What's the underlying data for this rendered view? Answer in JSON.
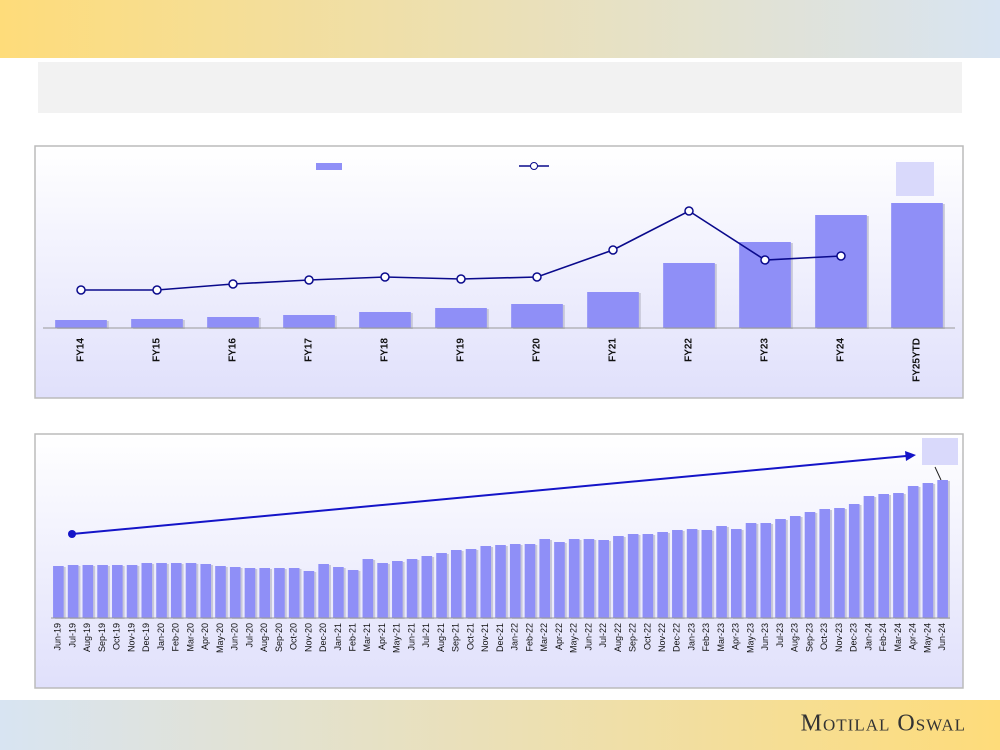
{
  "chart_data": [
    {
      "type": "combo",
      "categories": [
        "FY14",
        "FY15",
        "FY16",
        "FY17",
        "FY18",
        "FY19",
        "FY20",
        "FY21",
        "FY22",
        "FY23",
        "FY24",
        "FY25YTD"
      ],
      "series": [
        {
          "kind": "bar",
          "color": "#8f8ff7",
          "values": [
            8,
            9,
            11,
            13,
            16,
            20,
            24,
            36,
            65,
            86,
            113,
            125
          ]
        },
        {
          "kind": "line",
          "axis": "y2",
          "color": "#0a0a8c",
          "values": [
            38,
            38,
            44,
            48,
            51,
            49,
            51,
            78,
            117,
            68,
            72,
            null
          ]
        }
      ],
      "ylim": [
        0,
        180
      ],
      "y2lim": [
        0,
        180
      ]
    },
    {
      "type": "bar",
      "categories": [
        "Jun-19",
        "Jul-19",
        "Aug-19",
        "Sep-19",
        "Oct-19",
        "Nov-19",
        "Dec-19",
        "Jan-20",
        "Feb-20",
        "Mar-20",
        "Apr-20",
        "May-20",
        "Jun-20",
        "Jul-20",
        "Aug-20",
        "Sep-20",
        "Oct-20",
        "Nov-20",
        "Dec-20",
        "Jan-21",
        "Feb-21",
        "Mar-21",
        "Apr-21",
        "May-21",
        "Jun-21",
        "Jul-21",
        "Aug-21",
        "Sep-21",
        "Oct-21",
        "Nov-21",
        "Dec-21",
        "Jan-22",
        "Feb-22",
        "Mar-22",
        "Apr-22",
        "May-22",
        "Jun-22",
        "Jul-22",
        "Aug-22",
        "Sep-22",
        "Oct-22",
        "Nov-22",
        "Dec-22",
        "Jan-23",
        "Feb-23",
        "Mar-23",
        "Apr-23",
        "May-23",
        "Jun-23",
        "Jul-23",
        "Aug-23",
        "Sep-23",
        "Oct-23",
        "Nov-23",
        "Dec-23",
        "Jan-24",
        "Feb-24",
        "Mar-24",
        "Apr-24",
        "May-24",
        "Jun-24"
      ],
      "series": [
        {
          "kind": "bar",
          "color": "#8f8ff7",
          "values": [
            52,
            53,
            53,
            53,
            53,
            53,
            55,
            55,
            55,
            55,
            54,
            52,
            51,
            50,
            50,
            50,
            50,
            47,
            54,
            51,
            48,
            59,
            55,
            57,
            59,
            62,
            65,
            68,
            69,
            72,
            73,
            74,
            74,
            79,
            76,
            79,
            79,
            78,
            82,
            84,
            84,
            86,
            88,
            89,
            88,
            92,
            89,
            95,
            95,
            99,
            102,
            106,
            109,
            110,
            114,
            122,
            124,
            125,
            132,
            135,
            138
          ]
        }
      ],
      "ylim": [
        0,
        175
      ]
    }
  ],
  "footer": {
    "brand": "Motilal Oswal"
  }
}
